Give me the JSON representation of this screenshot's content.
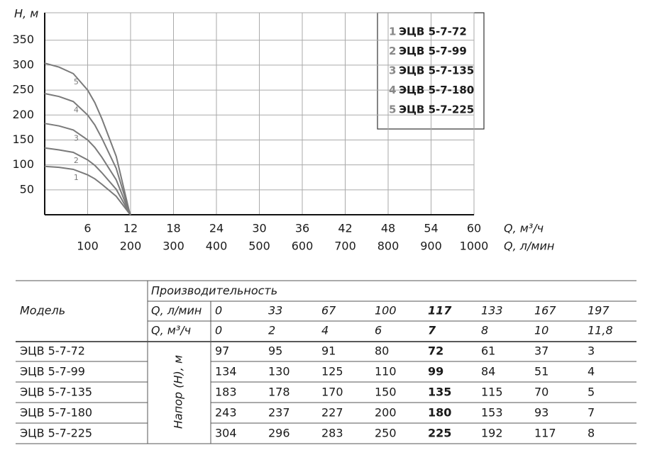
{
  "chart_data": {
    "type": "line",
    "y_label": "H, м",
    "x_label": "Q, м³/ч",
    "x2_label": "Q, л/мин",
    "x": [
      0,
      2,
      4,
      6,
      7,
      8,
      10,
      11.8,
      12
    ],
    "series": [
      {
        "label": "1",
        "name": "ЭЦВ 5-7-72",
        "color": "#7a7a7a",
        "values": [
          97,
          95,
          91,
          80,
          72,
          61,
          37,
          3,
          0
        ]
      },
      {
        "label": "2",
        "name": "ЭЦВ 5-7-99",
        "color": "#7a7a7a",
        "values": [
          134,
          130,
          125,
          110,
          99,
          84,
          51,
          4,
          0
        ]
      },
      {
        "label": "3",
        "name": "ЭЦВ 5-7-135",
        "color": "#7a7a7a",
        "values": [
          183,
          178,
          170,
          150,
          135,
          115,
          70,
          5,
          0
        ]
      },
      {
        "label": "4",
        "name": "ЭЦВ 5-7-180",
        "color": "#7a7a7a",
        "values": [
          243,
          237,
          227,
          200,
          180,
          153,
          93,
          7,
          0
        ]
      },
      {
        "label": "5",
        "name": "ЭЦВ 5-7-225",
        "color": "#7a7a7a",
        "values": [
          304,
          296,
          283,
          250,
          225,
          192,
          117,
          8,
          0
        ]
      }
    ],
    "xlim": [
      0,
      60
    ],
    "xticks": [
      6,
      12,
      18,
      24,
      30,
      36,
      42,
      48,
      54,
      60
    ],
    "x2lim": [
      0,
      1000
    ],
    "x2ticks": [
      100,
      200,
      300,
      400,
      500,
      600,
      700,
      800,
      900,
      1000
    ],
    "ylim": [
      0,
      405
    ],
    "yticks": [
      50,
      100,
      150,
      200,
      250,
      300,
      350
    ],
    "grid": true,
    "legend": "top-right"
  },
  "table": {
    "header": {
      "model": "Модель",
      "performance": "Производительность",
      "q_lpm_label": "Q, л/мин",
      "q_m3h_label": "Q, м³/ч",
      "head_label": "Напор (H), м"
    },
    "q_lpm": [
      0,
      33,
      67,
      100,
      117,
      133,
      167,
      197
    ],
    "q_m3h": [
      0,
      2,
      4,
      6,
      7,
      8,
      10,
      "11,8"
    ],
    "highlight_column": 4,
    "rows": [
      {
        "model": "ЭЦВ 5-7-72",
        "values": [
          97,
          95,
          91,
          80,
          72,
          61,
          37,
          3
        ]
      },
      {
        "model": "ЭЦВ 5-7-99",
        "values": [
          134,
          130,
          125,
          110,
          99,
          84,
          51,
          4
        ]
      },
      {
        "model": "ЭЦВ 5-7-135",
        "values": [
          183,
          178,
          170,
          150,
          135,
          115,
          70,
          5
        ]
      },
      {
        "model": "ЭЦВ 5-7-180",
        "values": [
          243,
          237,
          227,
          200,
          180,
          153,
          93,
          7
        ]
      },
      {
        "model": "ЭЦВ 5-7-225",
        "values": [
          304,
          296,
          283,
          250,
          225,
          192,
          117,
          8
        ]
      }
    ]
  }
}
